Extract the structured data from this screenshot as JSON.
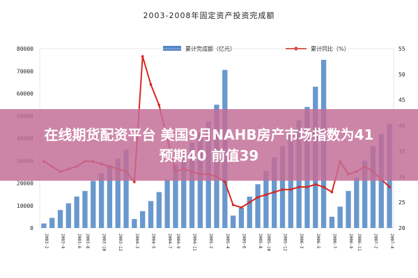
{
  "banner": {
    "line1": "在线期货配资平台 美国9月NAHB房产市场指数为41",
    "line2": "预期40 前值39"
  },
  "chart_data": {
    "type": "bar+line",
    "title": "2003-2008年固定资产投资完成额",
    "legend": [
      {
        "name": "累计完成额（亿元）",
        "kind": "bar",
        "color": "#4f86c6"
      },
      {
        "name": "累计同比（%）",
        "kind": "line",
        "color": "#d7261e"
      }
    ],
    "left_axis": {
      "min": 0,
      "max": 80000,
      "ticks": [
        0,
        10000,
        20000,
        30000,
        40000,
        50000,
        60000,
        70000,
        80000
      ]
    },
    "right_axis": {
      "min": 20,
      "max": 55,
      "ticks": [
        20,
        25,
        30,
        35,
        40,
        45,
        50,
        55
      ]
    },
    "x_labels": [
      "2003-2",
      "2003-4",
      "2003-6",
      "2003-8",
      "2003-10",
      "2003-12",
      "2004-3",
      "2004-5",
      "2004-7",
      "2004-9",
      "2004-11",
      "2005-2",
      "2005-4",
      "2005-6",
      "2005-8",
      "2005-10",
      "2005-12",
      "2006-3",
      "2006-5",
      "2006-7",
      "2006-9",
      "2006-11",
      "2007-2",
      "2007-4"
    ],
    "bars": [
      2000,
      4500,
      8000,
      11000,
      14000,
      16500,
      21000,
      24500,
      28000,
      31000,
      35000,
      4000,
      7500,
      12000,
      16000,
      21500,
      28500,
      33000,
      38000,
      42500,
      47500,
      55000,
      70500,
      5500,
      9000,
      14000,
      19500,
      25500,
      31500,
      36500,
      42000,
      48000,
      54000,
      63000,
      75000,
      5000,
      9500,
      16500,
      22500,
      30000,
      36500,
      42000,
      46500
    ],
    "line": [
      33,
      32,
      31,
      31.5,
      32,
      33,
      33,
      32.5,
      32,
      31.5,
      31,
      29,
      53.5,
      48,
      44,
      37.5,
      31,
      31.5,
      31,
      30.5,
      30.5,
      30,
      29,
      24.5,
      24,
      25,
      26,
      26.5,
      27,
      27.5,
      27.5,
      28,
      28,
      28.5,
      28,
      27,
      33,
      30.5,
      31,
      32,
      31,
      29.5,
      28
    ]
  }
}
